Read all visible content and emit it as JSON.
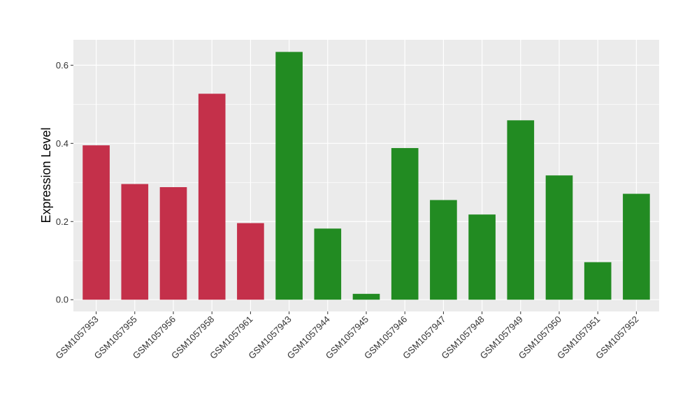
{
  "chart_data": {
    "type": "bar",
    "title": "",
    "xlabel": "",
    "ylabel": "Expression Level",
    "ylim": [
      -0.03,
      0.665
    ],
    "yticks": [
      0.0,
      0.2,
      0.4,
      0.6
    ],
    "ytick_labels": [
      "0.0",
      "0.2",
      "0.4",
      "0.6"
    ],
    "grid": true,
    "legend": "none",
    "categories": [
      "GSM1057953",
      "GSM1057955",
      "GSM1057956",
      "GSM1057958",
      "GSM1057961",
      "GSM1057943",
      "GSM1057944",
      "GSM1057945",
      "GSM1057946",
      "GSM1057947",
      "GSM1057948",
      "GSM1057949",
      "GSM1057950",
      "GSM1057951",
      "GSM1057952"
    ],
    "values": [
      0.395,
      0.296,
      0.288,
      0.527,
      0.196,
      0.634,
      0.182,
      0.015,
      0.388,
      0.255,
      0.218,
      0.459,
      0.318,
      0.096,
      0.271
    ],
    "colors": [
      "#c4304a",
      "#c4304a",
      "#c4304a",
      "#c4304a",
      "#c4304a",
      "#228b22",
      "#228b22",
      "#228b22",
      "#228b22",
      "#228b22",
      "#228b22",
      "#228b22",
      "#228b22",
      "#228b22",
      "#228b22"
    ],
    "panel_color": "#ebebeb",
    "grid_color": "#ffffff"
  }
}
